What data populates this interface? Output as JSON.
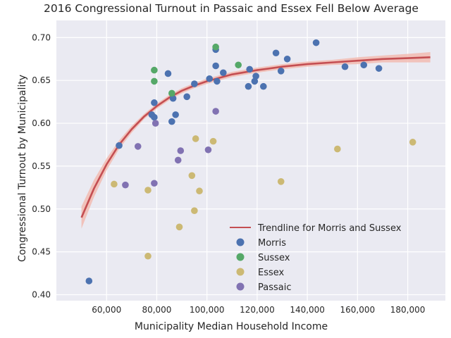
{
  "chart_data": {
    "type": "scatter",
    "title": "2016 Congressional Turnout in Passaic and Essex Fell Below Average",
    "xlabel": "Municipality Median Household Income",
    "ylabel": "Congressional Turnout by Municipality",
    "xlim": [
      40000,
      195000
    ],
    "ylim": [
      0.393,
      0.72
    ],
    "x_ticks": [
      60000,
      80000,
      100000,
      120000,
      140000,
      160000,
      180000
    ],
    "x_tick_labels": [
      "60,000",
      "80,000",
      "100,000",
      "120,000",
      "140,000",
      "160,000",
      "180,000"
    ],
    "y_ticks": [
      0.4,
      0.45,
      0.5,
      0.55,
      0.6,
      0.65,
      0.7
    ],
    "y_tick_labels": [
      "0.40",
      "0.45",
      "0.50",
      "0.55",
      "0.60",
      "0.65",
      "0.70"
    ],
    "grid": true,
    "legend_position": "lower-right",
    "trendline": {
      "name": "Trendline for Morris and Sussex",
      "color": "#c44e52",
      "band_color": "#f2b8ad",
      "points": [
        [
          50000,
          0.49
        ],
        [
          55000,
          0.524
        ],
        [
          60000,
          0.552
        ],
        [
          65000,
          0.575
        ],
        [
          70000,
          0.593
        ],
        [
          75000,
          0.608
        ],
        [
          80000,
          0.62
        ],
        [
          85000,
          0.63
        ],
        [
          90000,
          0.638
        ],
        [
          95000,
          0.644
        ],
        [
          100000,
          0.649
        ],
        [
          110000,
          0.657
        ],
        [
          120000,
          0.662
        ],
        [
          130000,
          0.666
        ],
        [
          140000,
          0.669
        ],
        [
          150000,
          0.671
        ],
        [
          160000,
          0.673
        ],
        [
          170000,
          0.675
        ],
        [
          180000,
          0.676
        ],
        [
          189000,
          0.677
        ]
      ],
      "band_half_width": [
        0.013,
        0.01,
        0.007,
        0.005,
        0.004,
        0.003,
        0.003,
        0.003,
        0.003,
        0.003,
        0.003,
        0.003,
        0.003,
        0.003,
        0.003,
        0.003,
        0.004,
        0.004,
        0.005,
        0.006
      ]
    },
    "series": [
      {
        "name": "Morris",
        "color": "#4c72b0",
        "points": [
          [
            53000,
            0.416
          ],
          [
            65000,
            0.574
          ],
          [
            78000,
            0.61
          ],
          [
            79000,
            0.607
          ],
          [
            79000,
            0.624
          ],
          [
            84500,
            0.658
          ],
          [
            86000,
            0.602
          ],
          [
            86500,
            0.629
          ],
          [
            87500,
            0.61
          ],
          [
            92000,
            0.631
          ],
          [
            95000,
            0.646
          ],
          [
            101000,
            0.652
          ],
          [
            103500,
            0.686
          ],
          [
            103500,
            0.667
          ],
          [
            104000,
            0.649
          ],
          [
            106500,
            0.659
          ],
          [
            116500,
            0.643
          ],
          [
            117000,
            0.663
          ],
          [
            119000,
            0.649
          ],
          [
            119500,
            0.655
          ],
          [
            122500,
            0.643
          ],
          [
            127500,
            0.682
          ],
          [
            129500,
            0.661
          ],
          [
            132000,
            0.675
          ],
          [
            143500,
            0.694
          ],
          [
            155000,
            0.666
          ],
          [
            162500,
            0.668
          ],
          [
            168500,
            0.664
          ]
        ]
      },
      {
        "name": "Sussex",
        "color": "#55a868",
        "points": [
          [
            79000,
            0.662
          ],
          [
            79000,
            0.649
          ],
          [
            86000,
            0.635
          ],
          [
            103500,
            0.689
          ],
          [
            112500,
            0.668
          ]
        ]
      },
      {
        "name": "Essex",
        "color": "#ccb974",
        "points": [
          [
            63000,
            0.529
          ],
          [
            76500,
            0.522
          ],
          [
            76500,
            0.445
          ],
          [
            89000,
            0.479
          ],
          [
            94000,
            0.539
          ],
          [
            95000,
            0.498
          ],
          [
            95500,
            0.582
          ],
          [
            97000,
            0.521
          ],
          [
            102500,
            0.579
          ],
          [
            129500,
            0.532
          ],
          [
            152000,
            0.57
          ],
          [
            182000,
            0.578
          ]
        ]
      },
      {
        "name": "Passaic",
        "color": "#8172b2",
        "points": [
          [
            67500,
            0.528
          ],
          [
            72500,
            0.573
          ],
          [
            79000,
            0.53
          ],
          [
            79500,
            0.6
          ],
          [
            88500,
            0.557
          ],
          [
            89500,
            0.568
          ],
          [
            100500,
            0.569
          ],
          [
            103500,
            0.614
          ]
        ]
      }
    ]
  }
}
